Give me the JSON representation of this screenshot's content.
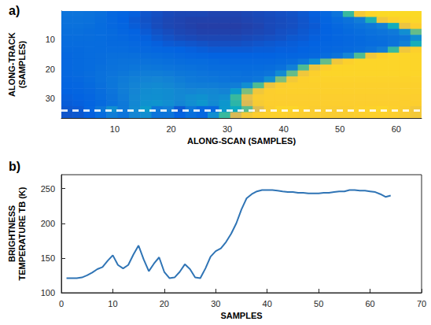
{
  "chart_data": [
    {
      "type": "heatmap",
      "label": "a)",
      "xlabel": "ALONG-SCAN (SAMPLES)",
      "ylabel": "ALONG-TRACK (SAMPLES)",
      "x": [
        1.5,
        3.5,
        5.5,
        7.5,
        9.5,
        11.5,
        13.5,
        15.5,
        17.5,
        19.5,
        21.5,
        23.5,
        25.5,
        27.5,
        29.5,
        31.5,
        33.5,
        35.5,
        37.5,
        39.5,
        41.5,
        43.5,
        45.5,
        47.5,
        49.5,
        51.5,
        53.5,
        55.5,
        57.5,
        59.5,
        61.5,
        63.5
      ],
      "y": [
        1.5,
        3.5,
        5.5,
        7.5,
        9.5,
        11.5,
        13.5,
        15.5,
        17.5,
        19.5,
        21.5,
        23.5,
        25.5,
        27.5,
        29.5,
        31.5,
        33.5,
        35.5
      ],
      "cells": [
        [
          135,
          135,
          134,
          132,
          128,
          126,
          124,
          120,
          118,
          116,
          115,
          115,
          115,
          114,
          114,
          114,
          115,
          116,
          117,
          118,
          119,
          121,
          124,
          128,
          135,
          185,
          240,
          248,
          250,
          250,
          250,
          250
        ],
        [
          134,
          134,
          133,
          131,
          128,
          125,
          122,
          119,
          117,
          115,
          114,
          113,
          113,
          113,
          113,
          113,
          114,
          115,
          116,
          117,
          118,
          120,
          123,
          126,
          130,
          134,
          140,
          175,
          238,
          246,
          248,
          249
        ],
        [
          133,
          133,
          132,
          130,
          128,
          126,
          123,
          120,
          117,
          115,
          114,
          113,
          112,
          112,
          112,
          112,
          113,
          114,
          116,
          117,
          118,
          120,
          122,
          125,
          128,
          131,
          134,
          137,
          142,
          170,
          235,
          245
        ],
        [
          132,
          132,
          131,
          130,
          129,
          127,
          125,
          122,
          119,
          117,
          115,
          114,
          113,
          113,
          113,
          113,
          114,
          115,
          116,
          118,
          119,
          121,
          123,
          125,
          127,
          129,
          131,
          133,
          135,
          138,
          150,
          195
        ],
        [
          131,
          131,
          131,
          130,
          129,
          128,
          126,
          124,
          121,
          119,
          117,
          116,
          115,
          115,
          115,
          115,
          116,
          117,
          118,
          119,
          121,
          122,
          124,
          125,
          127,
          128,
          129,
          131,
          132,
          134,
          137,
          150
        ],
        [
          130,
          130,
          130,
          130,
          129,
          129,
          128,
          126,
          124,
          122,
          121,
          120,
          119,
          118,
          118,
          118,
          119,
          120,
          121,
          122,
          123,
          124,
          125,
          126,
          127,
          128,
          129,
          130,
          131,
          134,
          142,
          172
        ],
        [
          129,
          129,
          130,
          130,
          130,
          130,
          129,
          128,
          127,
          126,
          125,
          124,
          123,
          122,
          122,
          122,
          122,
          123,
          123,
          124,
          124,
          125,
          126,
          127,
          128,
          129,
          131,
          134,
          140,
          185,
          238,
          246
        ],
        [
          128,
          129,
          130,
          131,
          132,
          132,
          132,
          131,
          130,
          129,
          128,
          127,
          126,
          125,
          125,
          125,
          125,
          125,
          125,
          126,
          126,
          127,
          128,
          130,
          134,
          145,
          190,
          238,
          246,
          248,
          248,
          248
        ],
        [
          128,
          129,
          130,
          131,
          133,
          134,
          134,
          134,
          133,
          132,
          131,
          130,
          130,
          129,
          128,
          128,
          128,
          128,
          128,
          129,
          131,
          136,
          150,
          195,
          238,
          246,
          248,
          248,
          248,
          248,
          248,
          248
        ],
        [
          128,
          129,
          130,
          132,
          134,
          135,
          136,
          137,
          136,
          135,
          134,
          133,
          132,
          131,
          131,
          130,
          130,
          130,
          131,
          133,
          142,
          190,
          236,
          245,
          248,
          248,
          248,
          248,
          248,
          248,
          248,
          248
        ],
        [
          128,
          129,
          131,
          133,
          135,
          137,
          139,
          140,
          140,
          139,
          137,
          136,
          135,
          134,
          133,
          133,
          132,
          133,
          135,
          148,
          195,
          238,
          246,
          248,
          248,
          248,
          248,
          248,
          248,
          248,
          248,
          248
        ],
        [
          127,
          128,
          130,
          133,
          136,
          139,
          142,
          144,
          145,
          143,
          140,
          138,
          137,
          136,
          135,
          134,
          134,
          136,
          150,
          200,
          240,
          246,
          247,
          247,
          247,
          247,
          247,
          247,
          247,
          247,
          247,
          247
        ],
        [
          126,
          127,
          129,
          132,
          136,
          140,
          144,
          147,
          148,
          146,
          143,
          141,
          140,
          140,
          139,
          140,
          150,
          190,
          236,
          244,
          246,
          246,
          246,
          246,
          246,
          246,
          246,
          246,
          246,
          246,
          246,
          246
        ],
        [
          125,
          126,
          128,
          131,
          135,
          140,
          145,
          149,
          150,
          149,
          146,
          145,
          147,
          146,
          144,
          158,
          200,
          238,
          245,
          246,
          246,
          246,
          246,
          246,
          246,
          246,
          246,
          246,
          246,
          246,
          246,
          246
        ],
        [
          124,
          125,
          127,
          130,
          134,
          139,
          146,
          150,
          151,
          149,
          147,
          150,
          152,
          148,
          150,
          185,
          232,
          244,
          245,
          245,
          245,
          245,
          245,
          245,
          245,
          245,
          245,
          245,
          245,
          245,
          245,
          245
        ],
        [
          123,
          124,
          126,
          129,
          133,
          138,
          146,
          152,
          154,
          150,
          145,
          150,
          155,
          148,
          155,
          180,
          225,
          242,
          245,
          245,
          245,
          245,
          245,
          245,
          245,
          245,
          245,
          245,
          245,
          245,
          245,
          245
        ],
        [
          121,
          122,
          127,
          136,
          150,
          138,
          148,
          158,
          137,
          140,
          122,
          136,
          128,
          128,
          156,
          168,
          192,
          228,
          244,
          248,
          248,
          246,
          244,
          244,
          243,
          244,
          246,
          247,
          248,
          246,
          244,
          239
        ],
        [
          120,
          121,
          124,
          130,
          140,
          135,
          145,
          150,
          135,
          135,
          125,
          132,
          128,
          150,
          185,
          225,
          240,
          245,
          246,
          246,
          245,
          244,
          244,
          243,
          243,
          244,
          245,
          246,
          246,
          245,
          243,
          240
        ]
      ],
      "color_range": [
        105,
        265
      ],
      "profile_along_track": 34,
      "xlim": [
        0.5,
        64.5
      ],
      "xticks": [
        10,
        20,
        30,
        40,
        50,
        60
      ],
      "ylim": [
        36.5,
        0.5
      ],
      "yticks": [
        10,
        20,
        30
      ],
      "grid": false
    },
    {
      "type": "line",
      "label": "b)",
      "xlabel": "SAMPLES",
      "ylabel": "BRIGHTNESS TEMPERATURE TB (K)",
      "x": [
        1,
        2,
        3,
        4,
        5,
        6,
        7,
        8,
        9,
        10,
        11,
        12,
        13,
        14,
        15,
        16,
        17,
        18,
        19,
        20,
        21,
        22,
        23,
        24,
        25,
        26,
        27,
        28,
        29,
        30,
        31,
        32,
        33,
        34,
        35,
        36,
        37,
        38,
        39,
        40,
        41,
        42,
        43,
        44,
        45,
        46,
        47,
        48,
        49,
        50,
        51,
        52,
        53,
        54,
        55,
        56,
        57,
        58,
        59,
        60,
        61,
        62,
        63,
        64
      ],
      "values": [
        121,
        121,
        121,
        122,
        125,
        129,
        134,
        137,
        146,
        154,
        140,
        135,
        140,
        155,
        168,
        148,
        131,
        142,
        151,
        130,
        121,
        122,
        130,
        141,
        134,
        122,
        121,
        135,
        152,
        160,
        164,
        173,
        185,
        200,
        220,
        236,
        242,
        246,
        248,
        248,
        248,
        247,
        246,
        245,
        245,
        244,
        244,
        243,
        243,
        243,
        244,
        244,
        245,
        246,
        246,
        248,
        248,
        247,
        247,
        246,
        245,
        242,
        238,
        240
      ],
      "color": "#2f74b5",
      "xlim": [
        0,
        70
      ],
      "xticks": [
        0,
        10,
        20,
        30,
        40,
        50,
        60,
        70
      ],
      "ylim": [
        100,
        270
      ],
      "yticks": [
        100,
        150,
        200,
        250
      ],
      "grid": false
    }
  ]
}
